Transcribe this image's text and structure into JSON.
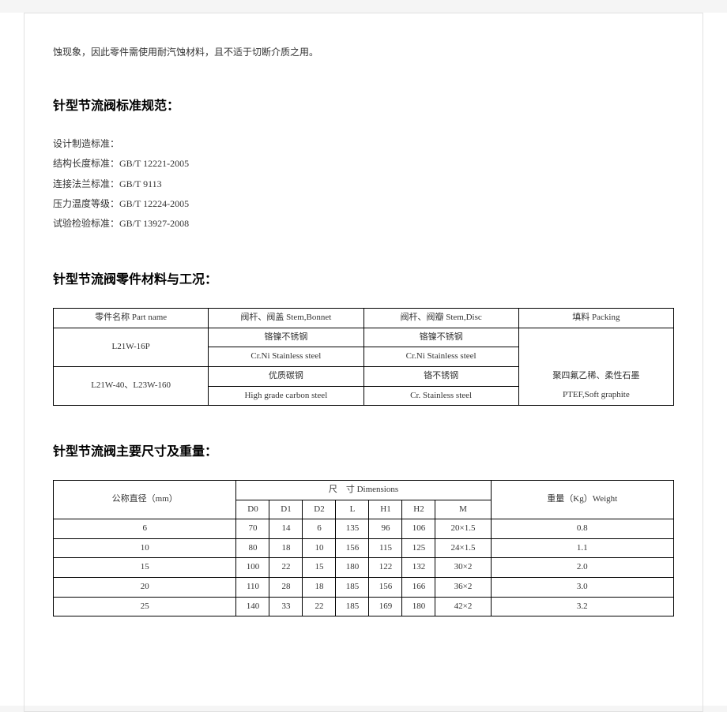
{
  "intro": "蚀现象，因此零件需使用耐汽蚀材料，且不适于切断介质之用。",
  "sections": {
    "standards": {
      "title": "针型节流阀标准规范：",
      "lines": {
        "l0": "设计制造标准：",
        "l1": "结构长度标准：GB/T 12221-2005",
        "l2": "连接法兰标准：GB/T 9113",
        "l3": "压力温度等级：GB/T 12224-2005",
        "l4": "试验检验标准：GB/T 13927-2008"
      }
    },
    "materials": {
      "title": "针型节流阀零件材料与工况：",
      "header": {
        "c0": "零件名称 Part name",
        "c1": "阀杆、阀盖 Stem,Bonnet",
        "c2": "阀杆、阀瓣 Stem,Disc",
        "c3": "填料 Packing"
      },
      "rows": {
        "r0": {
          "name": "L21W-16P",
          "c1a": "铬镍不锈钢",
          "c1b": "Cr.Ni Stainless steel",
          "c2a": "铬镍不锈钢",
          "c2b": "Cr.Ni Stainless steel"
        },
        "r1": {
          "name": "L21W-40、L23W-160",
          "c1a": "优质碳钢",
          "c1b": "High grade carbon steel",
          "c2a": "铬不锈钢",
          "c2b": "Cr. Stainless steel"
        },
        "packing_a": "聚四氟乙稀、柔性石墨",
        "packing_b": "PTEF,Soft graphite"
      }
    },
    "dimensions": {
      "title": "针型节流阀主要尺寸及重量：",
      "header": {
        "dn": "公称直径（mm）",
        "dims": "尺　寸 Dimensions",
        "weight": "重量（Kg）Weight",
        "d0": "D0",
        "d1": "D1",
        "d2": "D2",
        "l": "L",
        "h1": "H1",
        "h2": "H2",
        "m": "M"
      },
      "rows": [
        {
          "dn": "6",
          "d0": "70",
          "d1": "14",
          "d2": "6",
          "l": "135",
          "h1": "96",
          "h2": "106",
          "m": "20×1.5",
          "w": "0.8"
        },
        {
          "dn": "10",
          "d0": "80",
          "d1": "18",
          "d2": "10",
          "l": "156",
          "h1": "115",
          "h2": "125",
          "m": "24×1.5",
          "w": "1.1"
        },
        {
          "dn": "15",
          "d0": "100",
          "d1": "22",
          "d2": "15",
          "l": "180",
          "h1": "122",
          "h2": "132",
          "m": "30×2",
          "w": "2.0"
        },
        {
          "dn": "20",
          "d0": "110",
          "d1": "28",
          "d2": "18",
          "l": "185",
          "h1": "156",
          "h2": "166",
          "m": "36×2",
          "w": "3.0"
        },
        {
          "dn": "25",
          "d0": "140",
          "d1": "33",
          "d2": "22",
          "l": "185",
          "h1": "169",
          "h2": "180",
          "m": "42×2",
          "w": "3.2"
        }
      ]
    }
  }
}
